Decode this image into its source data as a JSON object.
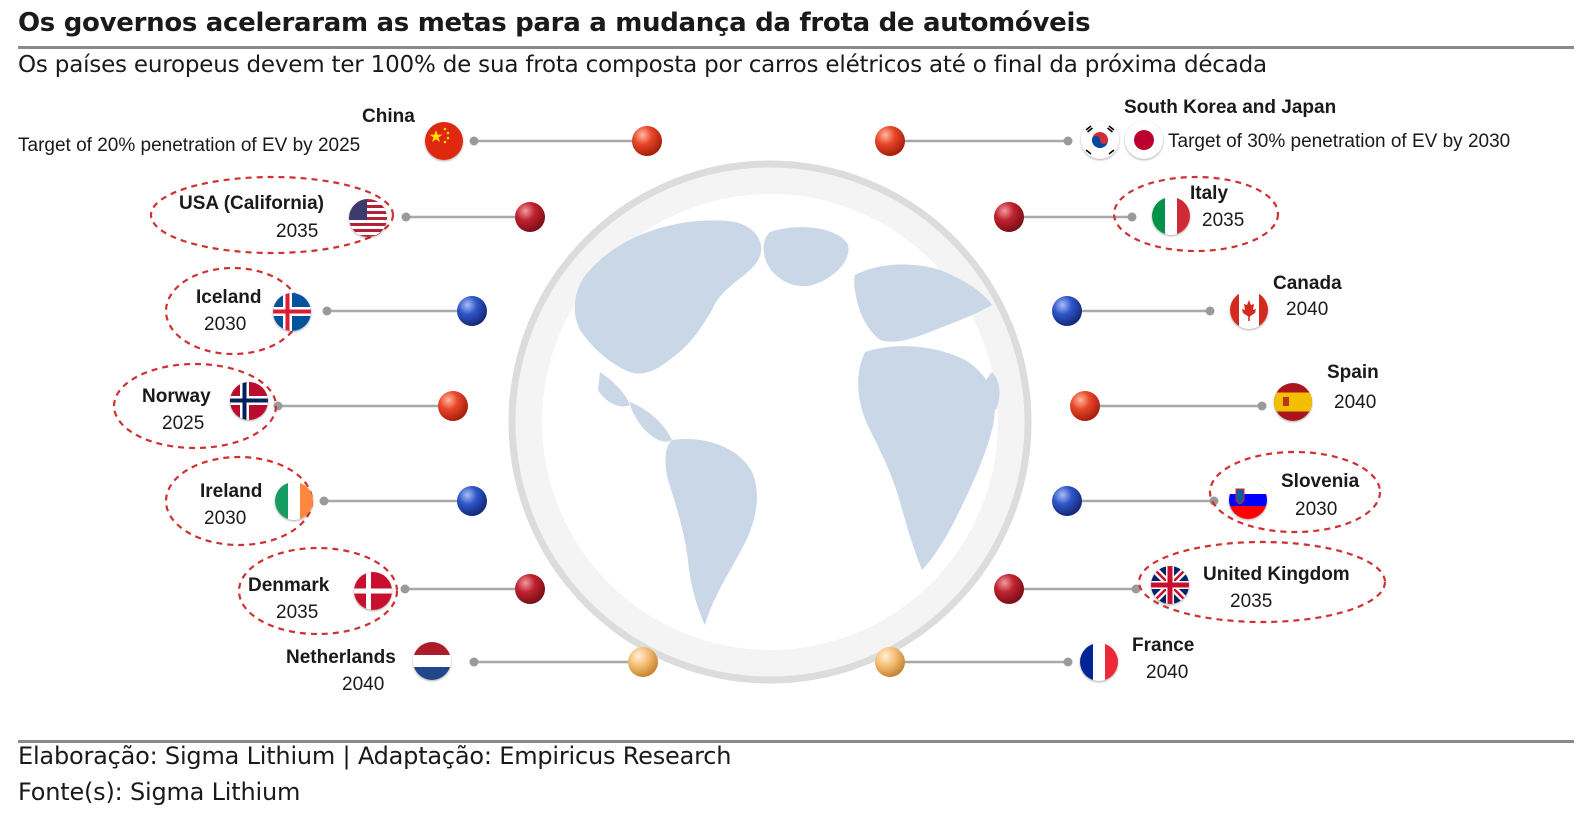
{
  "header": {
    "title": "Os governos aceleraram as metas para a mudança da frota de automóveis",
    "subtitle": "Os países europeus devem ter 100% de sua frota composta por carros elétricos até o final da próxima década"
  },
  "footer": {
    "credit": "Elaboração: Sigma Lithium | Adaptação: Empiricus Research",
    "source": "Fonte(s): Sigma Lithium"
  },
  "colors": {
    "red_dot": "#d83a20",
    "crimson_dot": "#b8202e",
    "blue_dot": "#2a4fbf",
    "peach_dot": "#f2b868",
    "highlight_ellipse": "#d03030",
    "globe_land": "#c8d6e6"
  },
  "left": [
    {
      "name": "China",
      "note": "Target of 20% penetration of EV by 2025",
      "year": "",
      "flag": "china-flag",
      "dot": "red",
      "highlighted": false
    },
    {
      "name": "USA (California)",
      "year": "2035",
      "flag": "usa-flag",
      "dot": "crimson",
      "highlighted": true
    },
    {
      "name": "Iceland",
      "year": "2030",
      "flag": "iceland-flag",
      "dot": "blue",
      "highlighted": true
    },
    {
      "name": "Norway",
      "year": "2025",
      "flag": "norway-flag",
      "dot": "red",
      "highlighted": true
    },
    {
      "name": "Ireland",
      "year": "2030",
      "flag": "ireland-flag",
      "dot": "blue",
      "highlighted": true
    },
    {
      "name": "Denmark",
      "year": "2035",
      "flag": "denmark-flag",
      "dot": "crimson",
      "highlighted": true
    },
    {
      "name": "Netherlands",
      "year": "2040",
      "flag": "netherlands-flag",
      "dot": "peach",
      "highlighted": false
    }
  ],
  "right": [
    {
      "name": "South Korea and Japan",
      "note": "Target of 30% penetration of EV by 2030",
      "year": "",
      "flag": "south-korea-flag, japan-flag",
      "dot": "red",
      "highlighted": false
    },
    {
      "name": "Italy",
      "year": "2035",
      "flag": "italy-flag",
      "dot": "crimson",
      "highlighted": true
    },
    {
      "name": "Canada",
      "year": "2040",
      "flag": "canada-flag",
      "dot": "blue",
      "highlighted": false
    },
    {
      "name": "Spain",
      "year": "2040",
      "flag": "spain-flag",
      "dot": "red",
      "highlighted": false
    },
    {
      "name": "Slovenia",
      "year": "2030",
      "flag": "slovenia-flag",
      "dot": "blue",
      "highlighted": true
    },
    {
      "name": "United Kingdom",
      "year": "2035",
      "flag": "uk-flag",
      "dot": "crimson",
      "highlighted": true
    },
    {
      "name": "France",
      "year": "2040",
      "flag": "france-flag",
      "dot": "peach",
      "highlighted": false
    }
  ]
}
